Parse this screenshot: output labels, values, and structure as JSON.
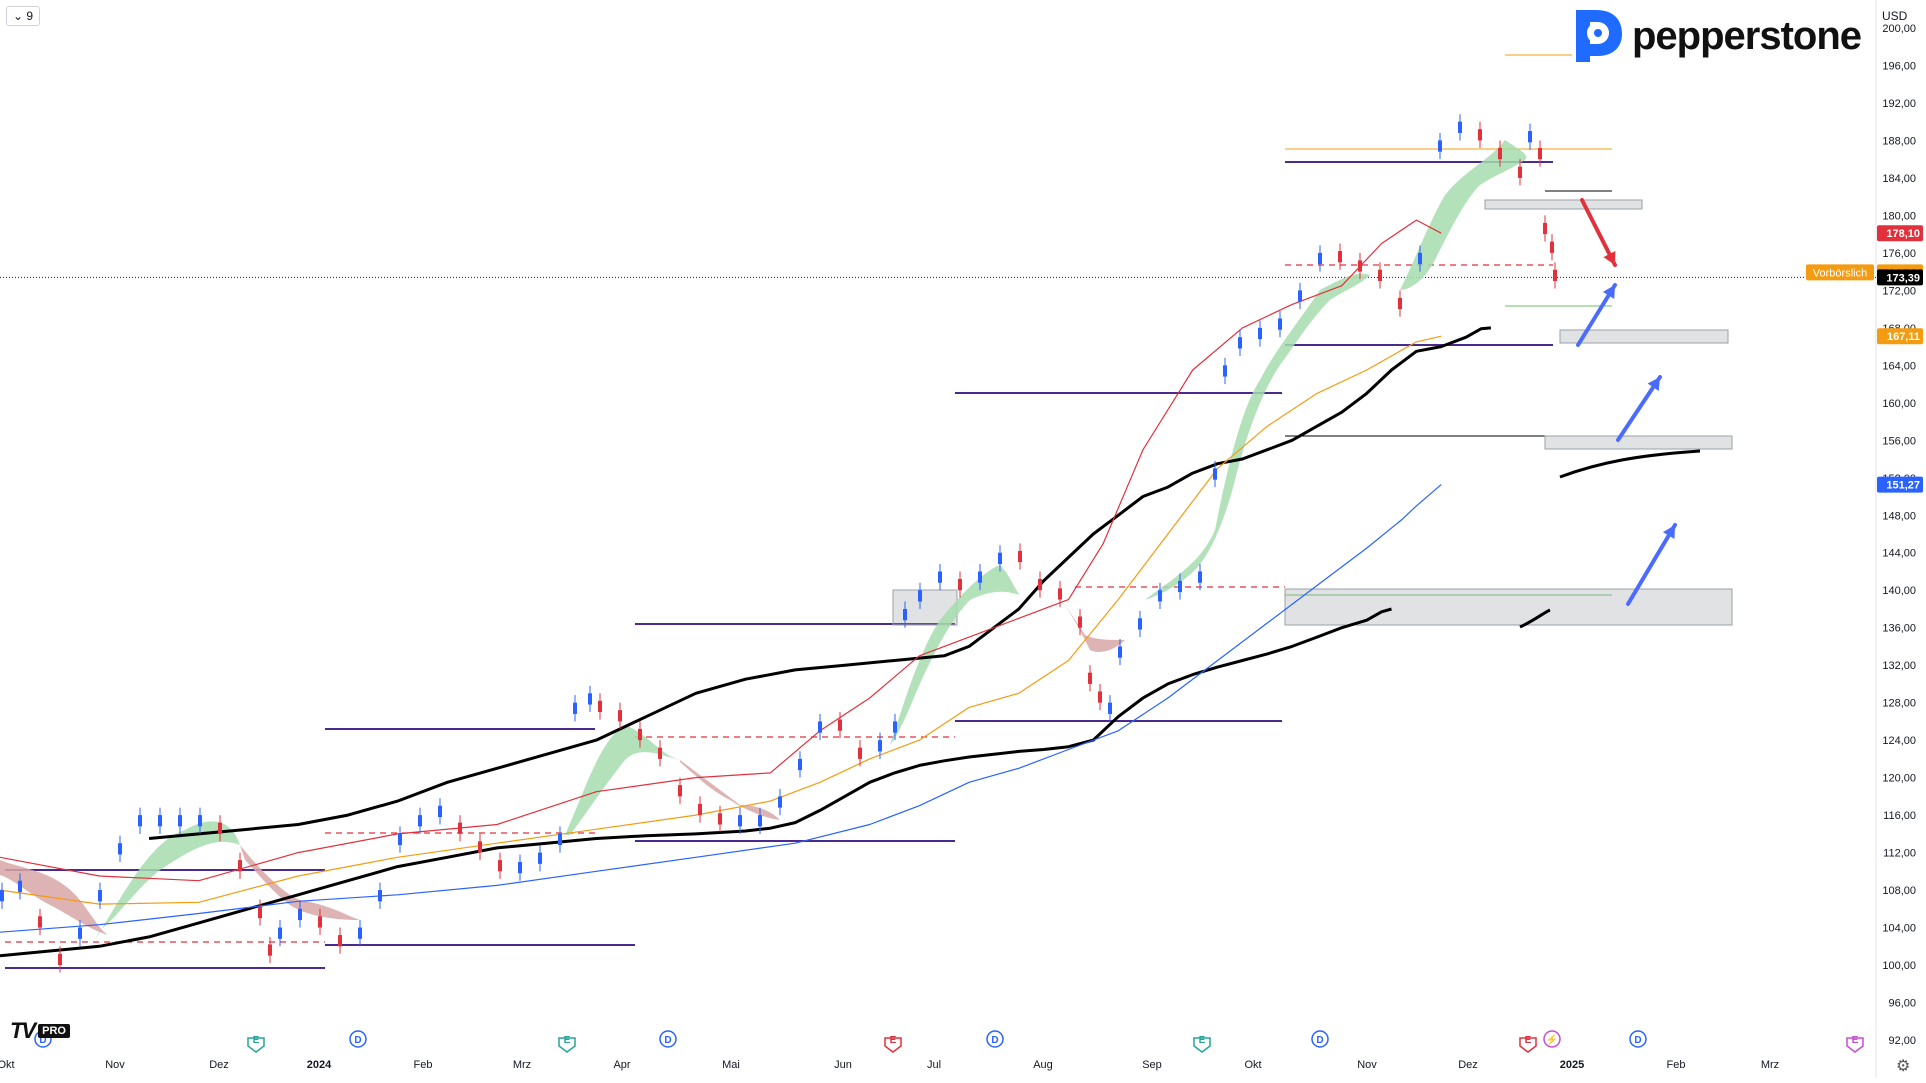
{
  "header": {
    "interval_label": "9",
    "currency_label": "USD",
    "brand_name": "pepperstone",
    "tv_mark": "TV",
    "tv_badge": "PRO",
    "settings_icon": "gear-icon"
  },
  "chart_data": {
    "type": "line",
    "y_ticks": [
      "200,00",
      "196,00",
      "192,00",
      "188,00",
      "184,00",
      "180,00",
      "176,00",
      "172,00",
      "168,00",
      "164,00",
      "160,00",
      "156,00",
      "152,00",
      "148,00",
      "144,00",
      "140,00",
      "136,00",
      "132,00",
      "128,00",
      "124,00",
      "120,00",
      "116,00",
      "112,00",
      "108,00",
      "104,00",
      "100,00",
      "96,00",
      "92,00"
    ],
    "x_ticks": [
      "Okt",
      "Nov",
      "Dez",
      "2024",
      "Feb",
      "Mrz",
      "Apr",
      "Mai",
      "Jun",
      "Jul",
      "Aug",
      "Sep",
      "Okt",
      "Nov",
      "Dez",
      "2025",
      "Feb",
      "Mrz"
    ],
    "ylim": [
      90,
      202
    ],
    "price_line": {
      "value": 173.39,
      "color": "#131722"
    },
    "price_tags": [
      {
        "label": "178,10",
        "value": 178.1,
        "color": "#e0313c"
      },
      {
        "label": "173,92",
        "value": 173.92,
        "color": "#f39c12"
      },
      {
        "label": "173,39",
        "value": 173.39,
        "color": "#000000"
      },
      {
        "label": "167,11",
        "value": 167.11,
        "color": "#f39c12"
      },
      {
        "label": "151,27",
        "value": 151.27,
        "color": "#2962ff"
      }
    ],
    "prev_close_label": "Vorbörslich",
    "series": [
      {
        "color": "#000000",
        "points": [
          [
            0,
            101
          ],
          [
            10,
            101.5
          ],
          [
            20,
            102
          ],
          [
            30,
            103
          ],
          [
            40,
            104.5
          ],
          [
            50,
            106
          ],
          [
            60,
            107.5
          ],
          [
            70,
            109
          ],
          [
            80,
            110.5
          ],
          [
            90,
            111.5
          ],
          [
            100,
            112.5
          ],
          [
            110,
            113
          ],
          [
            120,
            113.5
          ],
          [
            130,
            113.8
          ],
          [
            140,
            114
          ],
          [
            150,
            114.3
          ],
          [
            155,
            114.6
          ],
          [
            160,
            115.2
          ],
          [
            165,
            116.5
          ],
          [
            170,
            118
          ],
          [
            175,
            119.5
          ],
          [
            180,
            120.5
          ],
          [
            185,
            121.3
          ],
          [
            190,
            121.8
          ],
          [
            195,
            122.2
          ],
          [
            200,
            122.5
          ],
          [
            205,
            122.8
          ],
          [
            210,
            123
          ],
          [
            215,
            123.3
          ],
          [
            220,
            124
          ],
          [
            225,
            126.5
          ],
          [
            230,
            128.5
          ],
          [
            235,
            130
          ],
          [
            240,
            131
          ],
          [
            245,
            131.8
          ],
          [
            250,
            132.5
          ],
          [
            255,
            133.2
          ],
          [
            260,
            134
          ],
          [
            265,
            135
          ],
          [
            270,
            136
          ],
          [
            275,
            136.8
          ],
          [
            278,
            137.7
          ],
          [
            280,
            138
          ]
        ]
      },
      {
        "color": "#000000",
        "points": [
          [
            30,
            113.5
          ],
          [
            40,
            114
          ],
          [
            50,
            114.5
          ],
          [
            60,
            115
          ],
          [
            70,
            116
          ],
          [
            80,
            117.5
          ],
          [
            90,
            119.5
          ],
          [
            100,
            121
          ],
          [
            110,
            122.5
          ],
          [
            120,
            124
          ],
          [
            130,
            126.5
          ],
          [
            140,
            129
          ],
          [
            150,
            130.5
          ],
          [
            160,
            131.5
          ],
          [
            170,
            132
          ],
          [
            180,
            132.5
          ],
          [
            190,
            133
          ],
          [
            195,
            134
          ],
          [
            200,
            136
          ],
          [
            205,
            138
          ],
          [
            210,
            141
          ],
          [
            215,
            143.5
          ],
          [
            220,
            146
          ],
          [
            225,
            148
          ],
          [
            230,
            150
          ],
          [
            235,
            151
          ],
          [
            240,
            152.5
          ],
          [
            245,
            153.5
          ],
          [
            250,
            154
          ],
          [
            255,
            155
          ],
          [
            260,
            156
          ],
          [
            265,
            157.5
          ],
          [
            270,
            159
          ],
          [
            275,
            161
          ],
          [
            280,
            163.5
          ],
          [
            285,
            165.5
          ],
          [
            290,
            166
          ],
          [
            295,
            167
          ],
          [
            298,
            167.9
          ],
          [
            300,
            168
          ]
        ]
      },
      {
        "color": "#2962ff",
        "points": [
          [
            0,
            103.5
          ],
          [
            20,
            104.3
          ],
          [
            40,
            105.5
          ],
          [
            60,
            106.8
          ],
          [
            80,
            107.5
          ],
          [
            100,
            108.5
          ],
          [
            120,
            110
          ],
          [
            140,
            111.5
          ],
          [
            160,
            113
          ],
          [
            175,
            115
          ],
          [
            185,
            117
          ],
          [
            195,
            119.5
          ],
          [
            205,
            121
          ],
          [
            215,
            123
          ],
          [
            225,
            125
          ],
          [
            235,
            128.5
          ],
          [
            245,
            132.5
          ],
          [
            255,
            136.5
          ],
          [
            265,
            140.5
          ],
          [
            275,
            144.5
          ],
          [
            282,
            147.5
          ],
          [
            285,
            149
          ],
          [
            290,
            151.27
          ]
        ]
      },
      {
        "color": "#f39c12",
        "points": [
          [
            0,
            108
          ],
          [
            20,
            106.5
          ],
          [
            40,
            106.7
          ],
          [
            60,
            109.5
          ],
          [
            80,
            111.5
          ],
          [
            100,
            113
          ],
          [
            120,
            114.5
          ],
          [
            140,
            116
          ],
          [
            155,
            117.5
          ],
          [
            165,
            119.5
          ],
          [
            175,
            122
          ],
          [
            185,
            124
          ],
          [
            195,
            127.5
          ],
          [
            205,
            129
          ],
          [
            215,
            132.5
          ],
          [
            225,
            139
          ],
          [
            235,
            146
          ],
          [
            245,
            153
          ],
          [
            255,
            157.5
          ],
          [
            265,
            161
          ],
          [
            275,
            163.5
          ],
          [
            285,
            166.5
          ],
          [
            290,
            167.11
          ]
        ]
      },
      {
        "color": "#e0313c",
        "points": [
          [
            0,
            111.5
          ],
          [
            20,
            109.5
          ],
          [
            40,
            109
          ],
          [
            60,
            112
          ],
          [
            80,
            114
          ],
          [
            100,
            115
          ],
          [
            120,
            118.5
          ],
          [
            140,
            120
          ],
          [
            155,
            120.5
          ],
          [
            165,
            125
          ],
          [
            175,
            128.5
          ],
          [
            185,
            133
          ],
          [
            195,
            135
          ],
          [
            205,
            137
          ],
          [
            215,
            139
          ],
          [
            222,
            145
          ],
          [
            230,
            155
          ],
          [
            240,
            163.5
          ],
          [
            250,
            168
          ],
          [
            260,
            170.5
          ],
          [
            270,
            172.5
          ],
          [
            278,
            177
          ],
          [
            285,
            179.5
          ],
          [
            290,
            178.1
          ]
        ]
      }
    ]
  }
}
